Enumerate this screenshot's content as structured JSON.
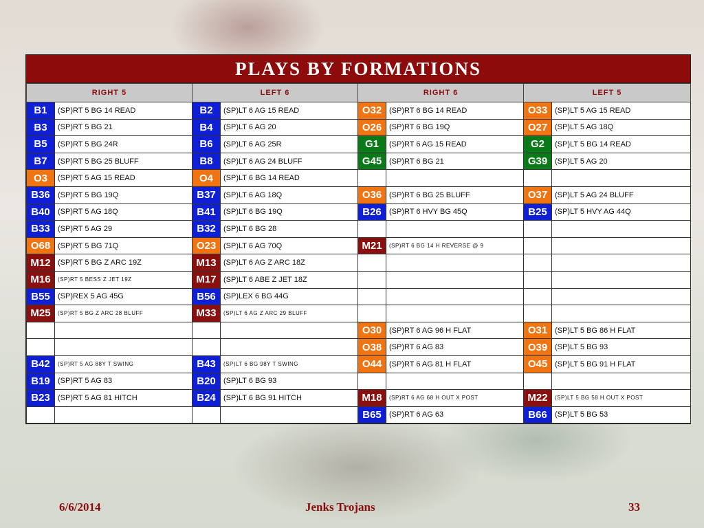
{
  "title": "PLAYS BY FORMATIONS",
  "headers": [
    "RIGHT 5",
    "LEFT 6",
    "RIGHT 6",
    "LEFT 5"
  ],
  "colors": {
    "blue": "#0e1fd6",
    "orange": "#f07412",
    "green": "#0a7a18",
    "maroon": "#8a0f0f"
  },
  "rows": [
    [
      [
        "B1",
        "blue",
        "(SP)RT 5 BG 14 READ"
      ],
      [
        "B2",
        "blue",
        "(SP)LT 6 AG 15 READ"
      ],
      [
        "O32",
        "orange",
        "(SP)RT 6 BG 14 READ"
      ],
      [
        "O33",
        "orange",
        "(SP)LT 5 AG 15 READ"
      ]
    ],
    [
      [
        "B3",
        "blue",
        "(SP)RT 5 BG 21"
      ],
      [
        "B4",
        "blue",
        "(SP)LT 6 AG 20"
      ],
      [
        "O26",
        "orange",
        "(SP)RT 6 BG 19Q"
      ],
      [
        "O27",
        "orange",
        "(SP)LT 5 AG 18Q"
      ]
    ],
    [
      [
        "B5",
        "blue",
        "(SP)RT 5 BG 24R"
      ],
      [
        "B6",
        "blue",
        "(SP)LT 6 AG 25R"
      ],
      [
        "G1",
        "green",
        "(SP)RT 6 AG 15 READ"
      ],
      [
        "G2",
        "green",
        "(SP)LT 5 BG 14 READ"
      ]
    ],
    [
      [
        "B7",
        "blue",
        "(SP)RT 5 BG 25 BLUFF"
      ],
      [
        "B8",
        "blue",
        "(SP)LT 6 AG 24 BLUFF"
      ],
      [
        "G45",
        "green",
        "(SP)RT 6 BG 21"
      ],
      [
        "G39",
        "green",
        "(SP)LT 5 AG 20"
      ]
    ],
    [
      [
        "O3",
        "orange",
        "(SP)RT 5 AG 15 READ"
      ],
      [
        "O4",
        "orange",
        "(SP)LT 6 BG 14 READ"
      ],
      [
        "",
        "",
        ""
      ],
      [
        "",
        "",
        ""
      ]
    ],
    [
      [
        "B36",
        "blue",
        "(SP)RT 5 BG 19Q"
      ],
      [
        "B37",
        "blue",
        "(SP)LT 6 AG 18Q"
      ],
      [
        "O36",
        "orange",
        "(SP)RT 6 BG 25 BLUFF"
      ],
      [
        "O37",
        "orange",
        "(SP)LT 5 AG 24 BLUFF"
      ]
    ],
    [
      [
        "B40",
        "blue",
        "(SP)RT 5 AG 18Q"
      ],
      [
        "B41",
        "blue",
        "(SP)LT 6 BG 19Q"
      ],
      [
        "B26",
        "blue",
        "(SP)RT 6 HVY BG 45Q"
      ],
      [
        "B25",
        "blue",
        "(SP)LT 5 HVY AG 44Q"
      ]
    ],
    [
      [
        "B33",
        "blue",
        "(SP)RT 5 AG 29"
      ],
      [
        "B32",
        "blue",
        "(SP)LT 6 BG 28"
      ],
      [
        "",
        "",
        ""
      ],
      [
        "",
        "",
        ""
      ]
    ],
    [
      [
        "O68",
        "orange",
        "(SP)RT 5 BG 71Q"
      ],
      [
        "O23",
        "orange",
        "(SP)LT 6 AG 70Q"
      ],
      [
        "M21",
        "maroon",
        "(SP)RT 6 BG 14 H REVERSE @ 9"
      ],
      [
        "",
        "",
        ""
      ]
    ],
    [
      [
        "M12",
        "maroon",
        "(SP)RT 5 BG Z ARC 19Z"
      ],
      [
        "M13",
        "maroon",
        "(SP)LT 6 AG Z ARC 18Z"
      ],
      [
        "",
        "",
        ""
      ],
      [
        "",
        "",
        ""
      ]
    ],
    [
      [
        "M16",
        "maroon",
        "(SP)RT 5 BESS Z JET 19Z"
      ],
      [
        "M17",
        "maroon",
        "(SP)LT 6 ABE Z JET 18Z"
      ],
      [
        "",
        "",
        ""
      ],
      [
        "",
        "",
        ""
      ]
    ],
    [
      [
        "B55",
        "blue",
        "(SP)REX 5 AG 45G"
      ],
      [
        "B56",
        "blue",
        "(SP)LEX 6 BG 44G"
      ],
      [
        "",
        "",
        ""
      ],
      [
        "",
        "",
        ""
      ]
    ],
    [
      [
        "M25",
        "maroon",
        "(SP)RT 5 BG Z ARC 28 BLUFF"
      ],
      [
        "M33",
        "maroon",
        "(SP)LT 6 AG Z ARC 29 BLUFF"
      ],
      [
        "",
        "",
        ""
      ],
      [
        "",
        "",
        ""
      ]
    ],
    [
      [
        "",
        "",
        ""
      ],
      [
        "",
        "",
        ""
      ],
      [
        "O30",
        "orange",
        "(SP)RT 6 AG 96 H FLAT"
      ],
      [
        "O31",
        "orange",
        "(SP)LT 5 BG 86 H FLAT"
      ]
    ],
    [
      [
        "",
        "",
        ""
      ],
      [
        "",
        "",
        ""
      ],
      [
        "O38",
        "orange",
        "(SP)RT 6 AG 83"
      ],
      [
        "O39",
        "orange",
        "(SP)LT 5 BG 93"
      ]
    ],
    [
      [
        "B42",
        "blue",
        "(SP)RT 5 AG 88Y T SWING"
      ],
      [
        "B43",
        "blue",
        "(SP)LT 6 BG 98Y T SWING"
      ],
      [
        "O44",
        "orange",
        "(SP)RT 6 AG 81 H FLAT"
      ],
      [
        "O45",
        "orange",
        "(SP)LT 5 BG 91 H FLAT"
      ]
    ],
    [
      [
        "B19",
        "blue",
        "(SP)RT 5 AG 83"
      ],
      [
        "B20",
        "blue",
        "(SP)LT 6 BG 93"
      ],
      [
        "",
        "",
        ""
      ],
      [
        "",
        "",
        ""
      ]
    ],
    [
      [
        "B23",
        "blue",
        "(SP)RT 5 AG 81 HITCH"
      ],
      [
        "B24",
        "blue",
        "(SP)LT 6 BG 91 HITCH"
      ],
      [
        "M18",
        "maroon",
        "(SP)RT 6 AG 68 H OUT X POST"
      ],
      [
        "M22",
        "maroon",
        "(SP)LT 5 BG 58 H OUT X POST"
      ]
    ],
    [
      [
        "",
        "",
        ""
      ],
      [
        "",
        "",
        ""
      ],
      [
        "B65",
        "blue",
        "(SP)RT 6 AG 63"
      ],
      [
        "B66",
        "blue",
        "(SP)LT 5 BG 53"
      ]
    ]
  ],
  "footer": {
    "date": "6/6/2014",
    "team": "Jenks Trojans",
    "page": "33"
  }
}
